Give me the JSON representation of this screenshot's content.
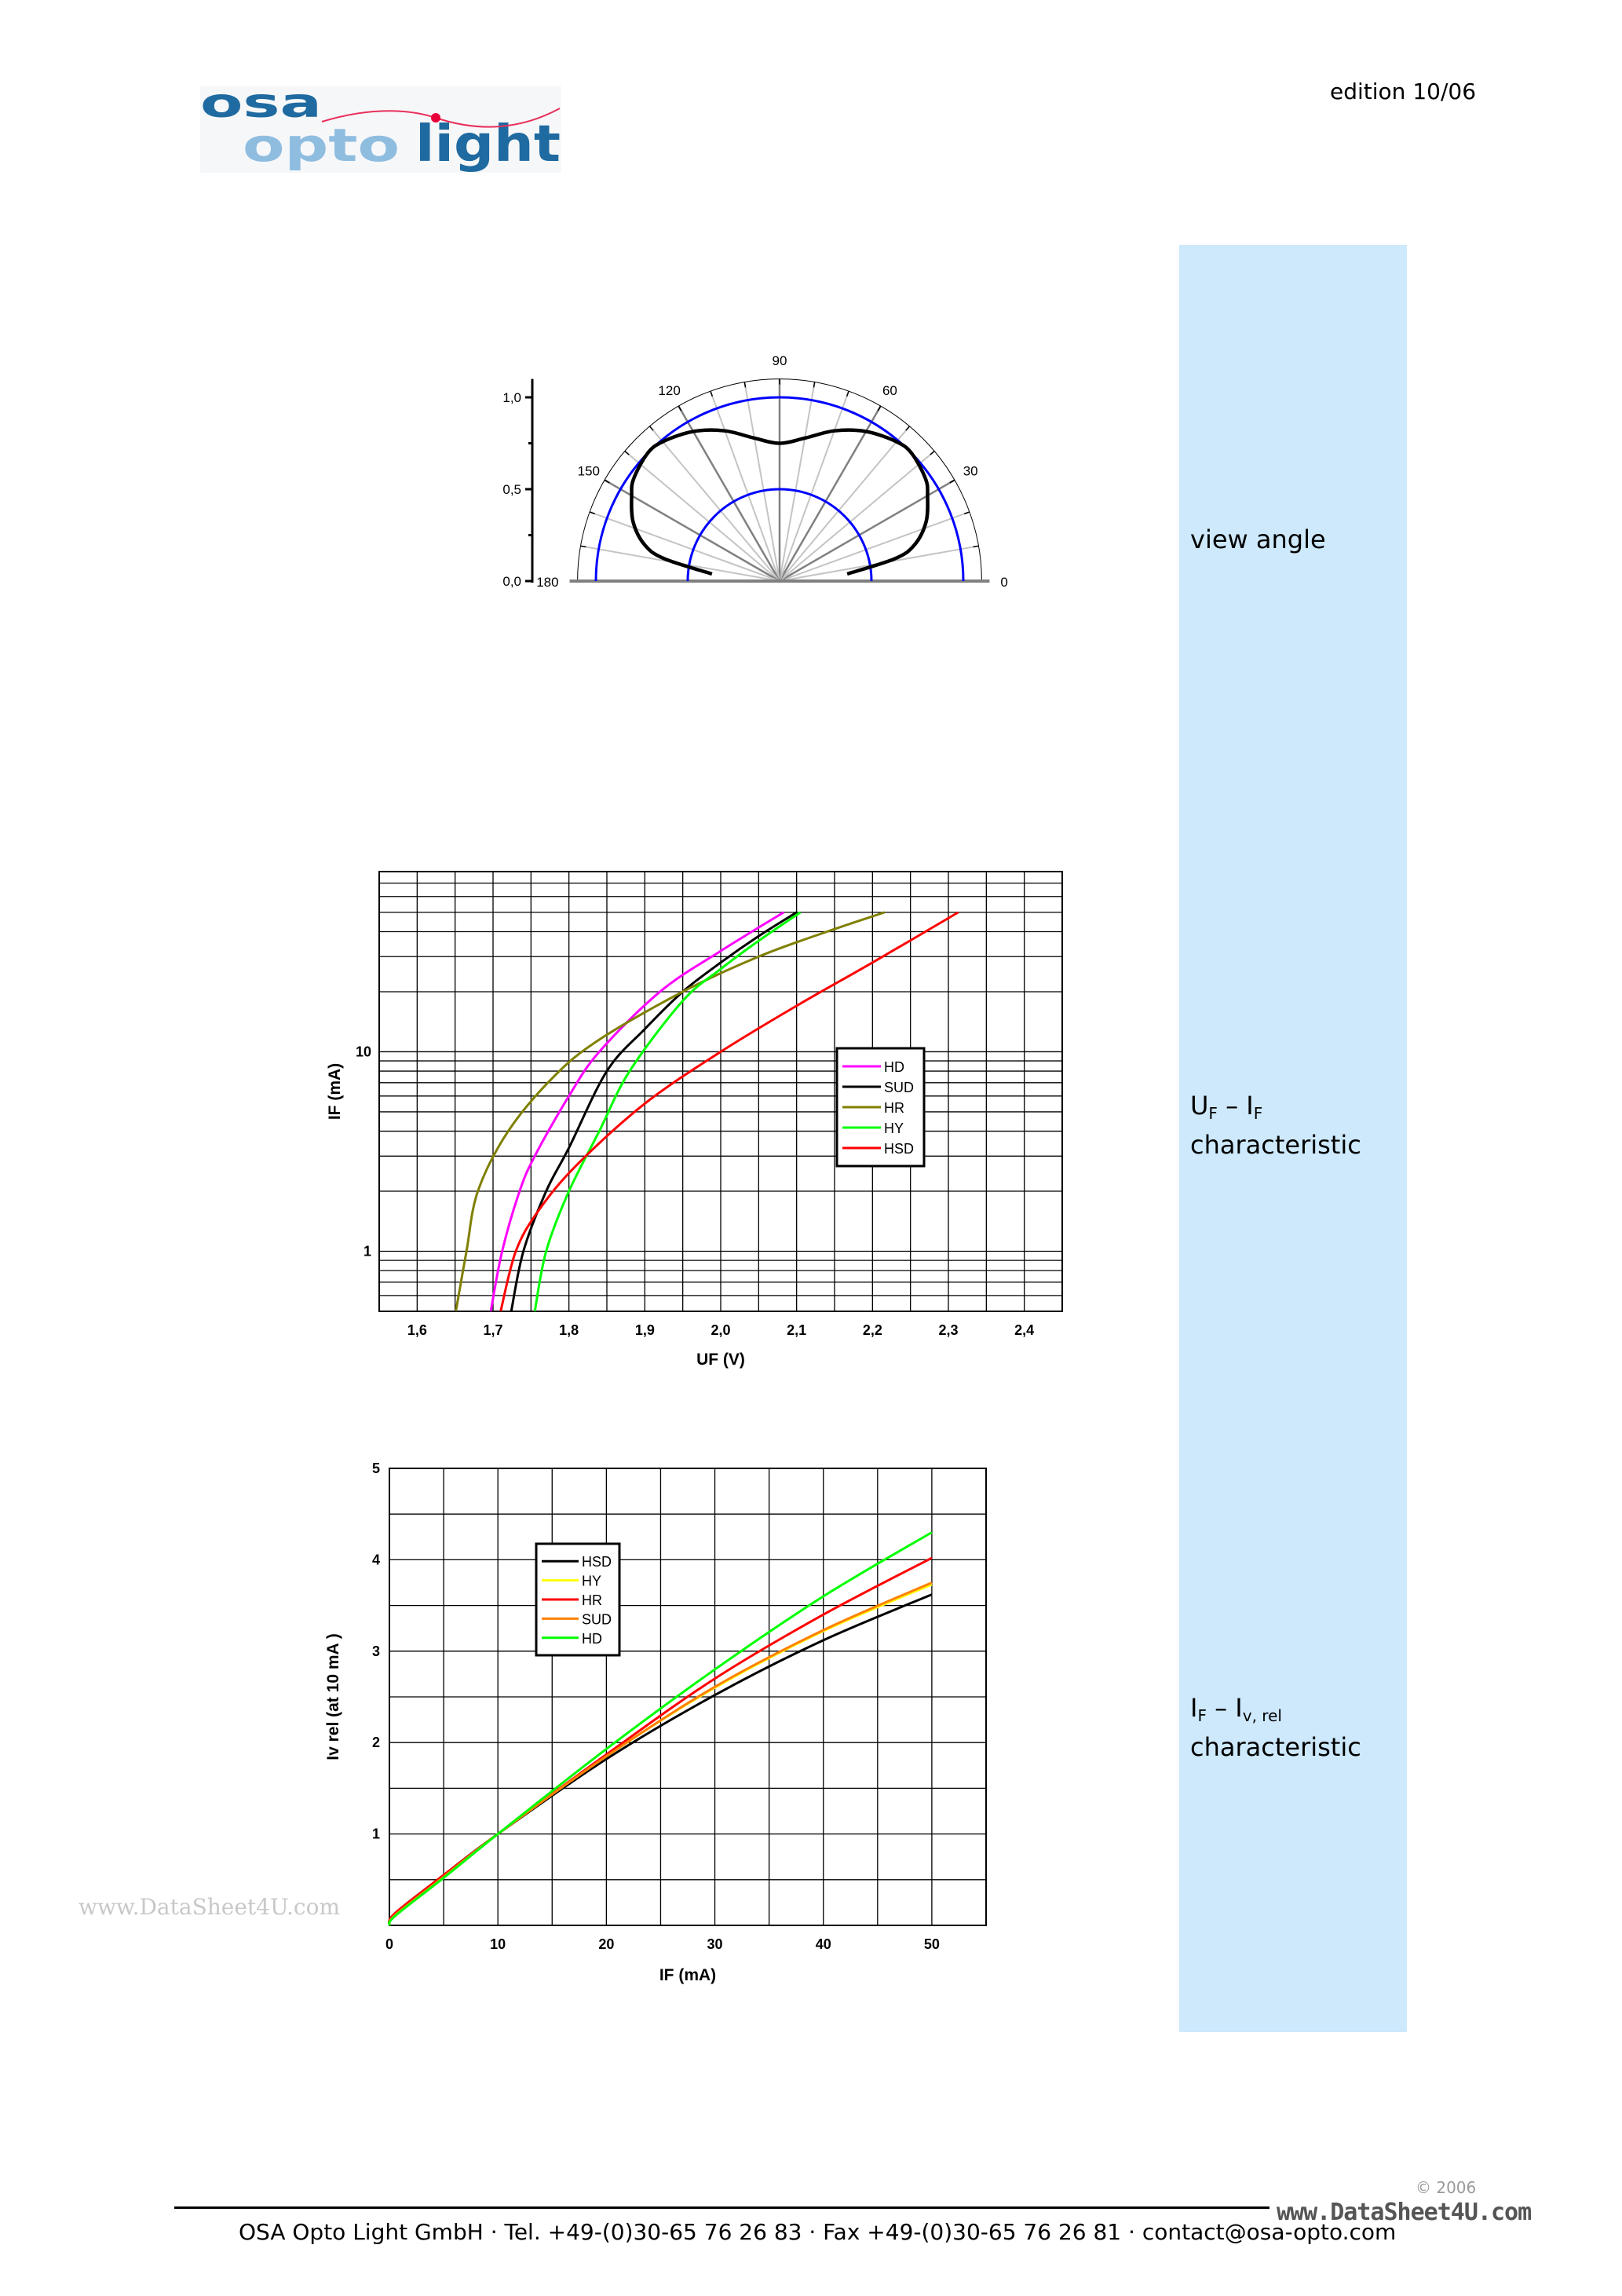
{
  "header": {
    "logo_text": "osa opto light",
    "edition": "edition 10/06",
    "logo_colors": {
      "dark": "#1f6aa0",
      "light": "#8fbde0",
      "wave": "#e8305a"
    }
  },
  "sidebar": {
    "color": "#cde9fb",
    "labels": [
      {
        "main": "view angle"
      },
      {
        "a": "U",
        "a_sub": "F",
        "dash": " – ",
        "b": "I",
        "b_sub": "F",
        "line2": "characteristic"
      },
      {
        "a": "I",
        "a_sub": "F",
        "dash": " – ",
        "b": "I",
        "b_sub": "v, rel",
        "line2": "characteristic"
      }
    ]
  },
  "chart_data": [
    {
      "type": "polar",
      "angle_ticks": [
        "0",
        "30",
        "60",
        "90",
        "120",
        "150",
        "180"
      ],
      "radial_ticks": [
        "0,0",
        "0,5",
        "1,0"
      ],
      "radial_range": [
        0,
        1.1
      ],
      "reference_circles": [
        0.5,
        1.0
      ],
      "reference_color": "#0000ff",
      "grid": true,
      "series": [
        {
          "color": "#000000",
          "angles": [
            6,
            11,
            15,
            22,
            30,
            35,
            44,
            50,
            60,
            70,
            80,
            90,
            100,
            110,
            120,
            130,
            136,
            145,
            150,
            158,
            165,
            169,
            174
          ],
          "r": [
            0.37,
            0.64,
            0.76,
            0.86,
            0.93,
            0.97,
            1.0,
            0.99,
            0.94,
            0.87,
            0.79,
            0.75,
            0.79,
            0.87,
            0.94,
            0.99,
            1.0,
            0.97,
            0.93,
            0.86,
            0.76,
            0.64,
            0.37
          ]
        }
      ]
    },
    {
      "type": "line",
      "xlabel": "UF (V)",
      "ylabel": "IF (mA)",
      "xlim": [
        1.55,
        2.45
      ],
      "ylim": [
        0.5,
        80
      ],
      "yscale": "log",
      "grid": true,
      "x_ticks": [
        1.6,
        1.7,
        1.8,
        1.9,
        2.0,
        2.1,
        2.2,
        2.3,
        2.4
      ],
      "x_tick_labels": [
        "1,6",
        "1,7",
        "1,8",
        "1,9",
        "2,0",
        "2,1",
        "2,2",
        "2,3",
        "2,4"
      ],
      "y_ticks": [
        1,
        10
      ],
      "y_tick_labels": [
        "1",
        "10"
      ],
      "legend": "right",
      "series": [
        {
          "name": "HD",
          "color": "#ff00ff",
          "x": [
            1.697,
            1.712,
            1.735,
            1.755,
            1.8,
            1.84,
            1.92,
            2.0,
            2.083
          ],
          "y": [
            0.5,
            1,
            2,
            3,
            6,
            10,
            20,
            32,
            50
          ]
        },
        {
          "name": "SUD",
          "color": "#000000",
          "x": [
            1.724,
            1.74,
            1.77,
            1.8,
            1.85,
            1.9,
            1.95,
            2.0,
            2.05,
            2.1
          ],
          "y": [
            0.5,
            1,
            2,
            3.3,
            8,
            13,
            20,
            28,
            38,
            50
          ]
        },
        {
          "name": "HR",
          "color": "#808000",
          "x": [
            1.651,
            1.665,
            1.68,
            1.72,
            1.78,
            1.84,
            1.95,
            2.05,
            2.14,
            2.216
          ],
          "y": [
            0.5,
            1,
            2,
            4,
            7.5,
            11.5,
            20,
            30,
            40,
            50
          ]
        },
        {
          "name": "HY",
          "color": "#00ff00",
          "x": [
            1.755,
            1.77,
            1.8,
            1.84,
            1.88,
            1.95,
            2.0,
            2.05,
            2.105
          ],
          "y": [
            0.5,
            1,
            2,
            4,
            8,
            18,
            26,
            36,
            50
          ]
        },
        {
          "name": "HSD",
          "color": "#ff0000",
          "x": [
            1.71,
            1.73,
            1.76,
            1.81,
            1.9,
            2.0,
            2.1,
            2.2,
            2.313
          ],
          "y": [
            0.5,
            1,
            1.6,
            2.7,
            5.5,
            10,
            17,
            28,
            50
          ]
        }
      ]
    },
    {
      "type": "line",
      "xlabel": "IF (mA)",
      "ylabel": "Iv rel (at 10 mA )",
      "xlim": [
        0,
        55
      ],
      "ylim": [
        0,
        5
      ],
      "grid": true,
      "x_ticks": [
        0,
        10,
        20,
        30,
        40,
        50
      ],
      "x_tick_labels": [
        "0",
        "10",
        "20",
        "30",
        "40",
        "50"
      ],
      "y_ticks": [
        1,
        2,
        3,
        4,
        5
      ],
      "y_tick_labels": [
        "1",
        "2",
        "3",
        "4",
        "5"
      ],
      "legend": "top-left",
      "series": [
        {
          "name": "HSD",
          "color": "#000000",
          "x": [
            0,
            0.5,
            5,
            10,
            20,
            30,
            40,
            50
          ],
          "y": [
            0,
            0.13,
            0.55,
            1.0,
            1.82,
            2.52,
            3.12,
            3.62
          ]
        },
        {
          "name": "HY",
          "color": "#ffff00",
          "x": [
            0,
            0.5,
            5,
            10,
            20,
            30,
            40,
            50
          ],
          "y": [
            0,
            0.11,
            0.53,
            1.0,
            1.85,
            2.6,
            3.22,
            3.73
          ]
        },
        {
          "name": "HR",
          "color": "#ff0000",
          "x": [
            0,
            0.5,
            5,
            10,
            20,
            30,
            40,
            50
          ],
          "y": [
            0,
            0.13,
            0.55,
            1.0,
            1.87,
            2.7,
            3.4,
            4.02
          ]
        },
        {
          "name": "SUD",
          "color": "#ff8000",
          "x": [
            0,
            0.5,
            5,
            10,
            20,
            30,
            40,
            50
          ],
          "y": [
            0,
            0.11,
            0.53,
            1.0,
            1.85,
            2.61,
            3.23,
            3.75
          ]
        },
        {
          "name": "HD",
          "color": "#00ff00",
          "x": [
            0,
            0.5,
            5,
            10,
            20,
            30,
            40,
            50
          ],
          "y": [
            0,
            0.1,
            0.52,
            1.0,
            1.93,
            2.8,
            3.6,
            4.3
          ]
        }
      ]
    }
  ],
  "footer": {
    "contact": "OSA Opto Light GmbH · Tel. +49-(0)30-65 76 26 83 · Fax +49-(0)30-65 76 26 81 · contact@osa-opto.com",
    "copyright": "© 2006",
    "watermark": "www.DataSheet4U.com"
  }
}
